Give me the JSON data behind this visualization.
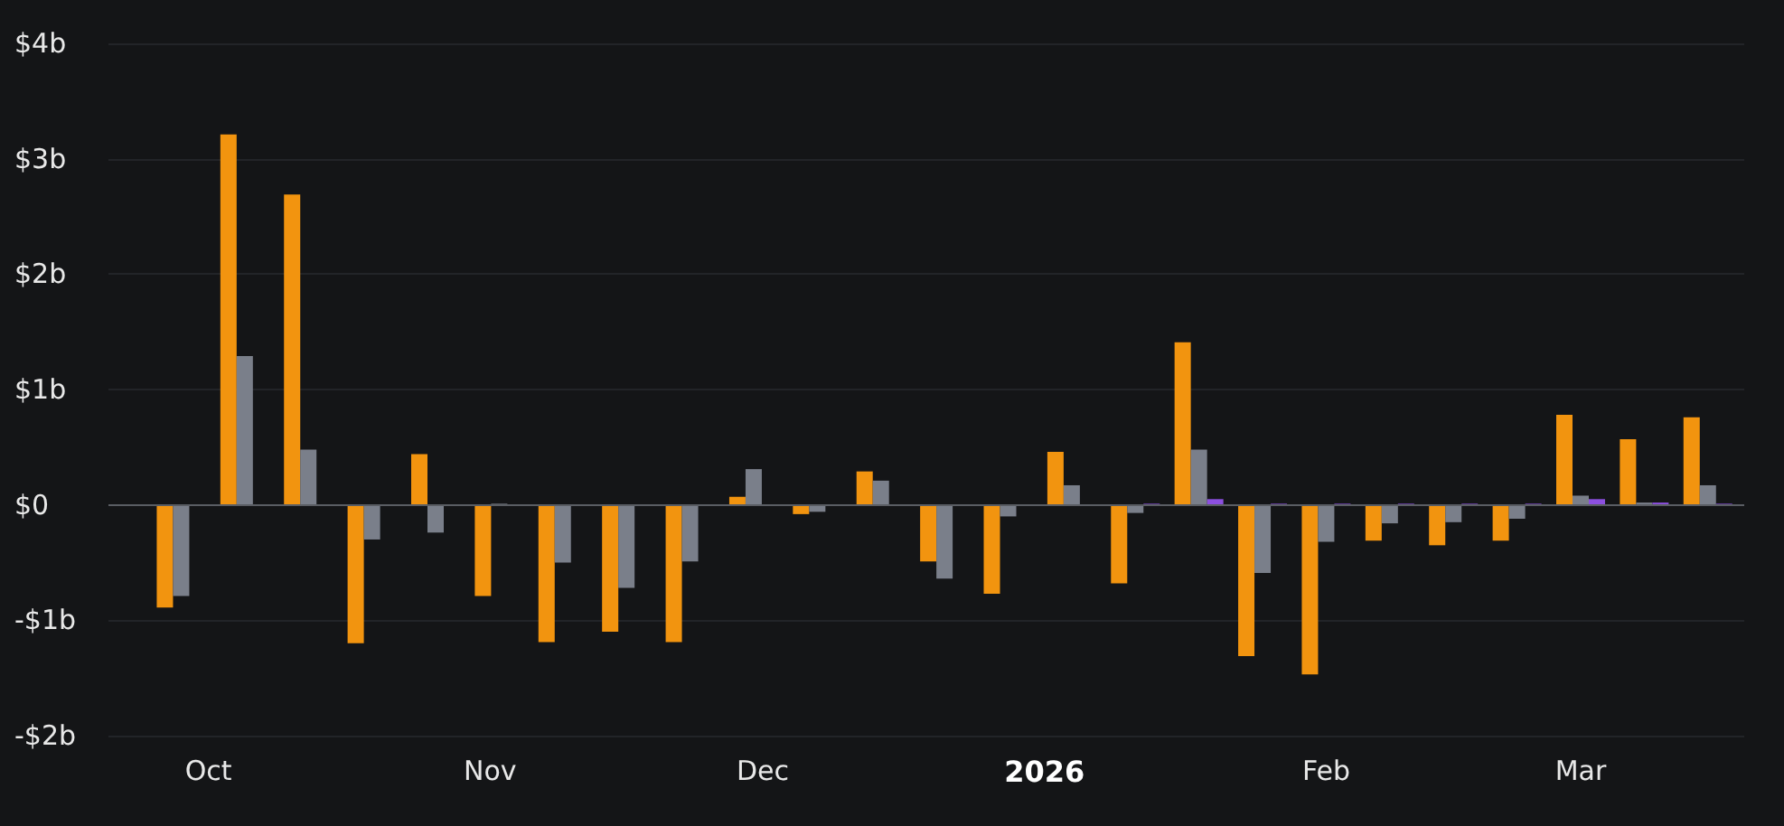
{
  "chart_data": {
    "type": "bar",
    "x": [
      "2025-09-28",
      "2025-10-05",
      "2025-10-12",
      "2025-10-19",
      "2025-10-26",
      "2025-11-02",
      "2025-11-09",
      "2025-11-16",
      "2025-11-23",
      "2025-11-30",
      "2025-12-07",
      "2025-12-14",
      "2025-12-21",
      "2025-12-28",
      "2026-01-04",
      "2026-01-11",
      "2026-01-18",
      "2026-01-25",
      "2026-02-01",
      "2026-02-08",
      "2026-02-15",
      "2026-02-22",
      "2026-03-01",
      "2026-03-08",
      "2026-03-15"
    ],
    "series": [
      {
        "color": "#f2940f",
        "values": [
          -0.89,
          3.21,
          2.69,
          -1.2,
          0.44,
          -0.79,
          -1.19,
          -1.1,
          -1.19,
          0.07,
          -0.08,
          0.29,
          -0.49,
          -0.77,
          0.46,
          -0.68,
          1.41,
          -1.31,
          -1.47,
          -0.31,
          -0.35,
          -0.31,
          0.78,
          0.57,
          0.76
        ]
      },
      {
        "color": "#7a7f8a",
        "values": [
          -0.79,
          1.29,
          0.48,
          -0.3,
          -0.24,
          0.01,
          -0.5,
          -0.72,
          -0.49,
          0.31,
          -0.06,
          0.21,
          -0.64,
          -0.1,
          0.17,
          -0.07,
          0.48,
          -0.59,
          -0.32,
          -0.16,
          -0.15,
          -0.12,
          0.08,
          0.02,
          0.17
        ]
      },
      {
        "color": "#8c4fe0",
        "values": [
          null,
          null,
          null,
          null,
          null,
          null,
          null,
          null,
          null,
          null,
          null,
          null,
          null,
          null,
          null,
          0.01,
          0.05,
          0.01,
          0.01,
          0.01,
          0.01,
          0.01,
          0.05,
          0.02,
          0.01
        ]
      }
    ],
    "xlim": [
      "2025-09-20",
      "2026-03-19"
    ],
    "xticks": [
      {
        "value": "2025-10-01",
        "label": "Oct"
      },
      {
        "value": "2025-11-01",
        "label": "Nov"
      },
      {
        "value": "2025-12-01",
        "label": "Dec"
      },
      {
        "value": "2026-01-01",
        "label": "2026"
      },
      {
        "value": "2026-02-01",
        "label": "Feb"
      },
      {
        "value": "2026-03-01",
        "label": "Mar"
      }
    ],
    "ylim": [
      -2,
      4
    ],
    "yticks": [
      {
        "value": -2,
        "label": "-$2b"
      },
      {
        "value": -1,
        "label": "-$1b"
      },
      {
        "value": 0,
        "label": "$0"
      },
      {
        "value": 1,
        "label": "$1b"
      },
      {
        "value": 2,
        "label": "$2b"
      },
      {
        "value": 3,
        "label": "$3b"
      },
      {
        "value": 4,
        "label": "$4b"
      }
    ],
    "grid": "y"
  }
}
